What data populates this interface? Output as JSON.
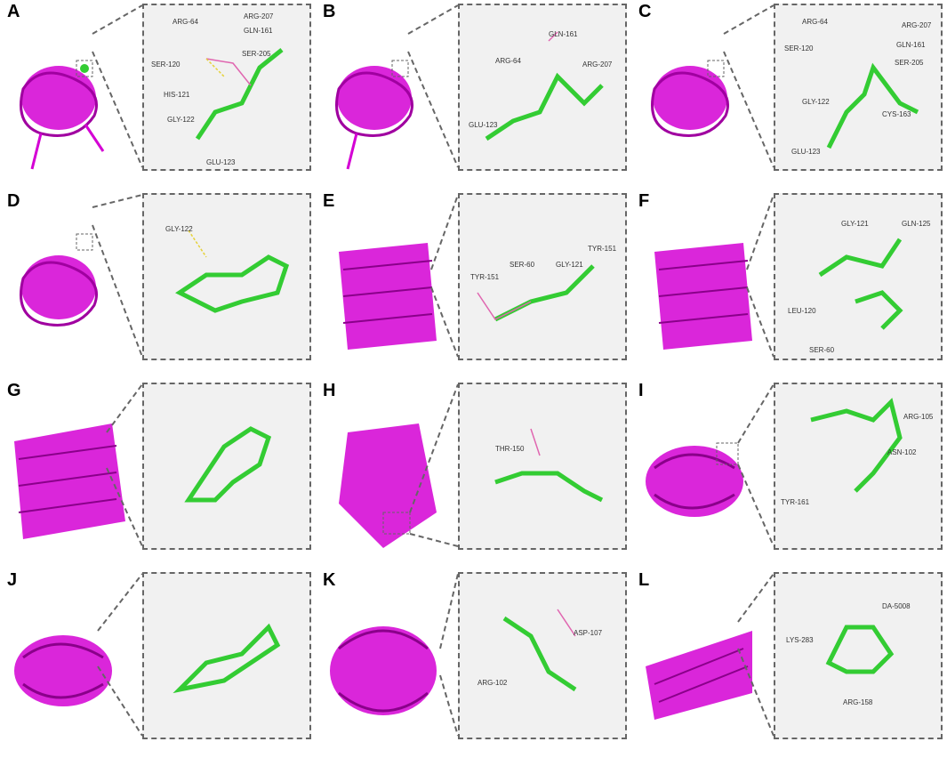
{
  "colors": {
    "protein": "#d400d4",
    "ligand": "#33cc33",
    "hbond": "#e6d23a",
    "residue": "#e066b0",
    "frame": "#666666"
  },
  "panels": [
    {
      "letter": "A",
      "residues": [
        "ARG-64",
        "ARG-207",
        "GLN-161",
        "SER-205",
        "SER-120",
        "HIS-121",
        "GLY-122",
        "GLU-123"
      ]
    },
    {
      "letter": "B",
      "residues": [
        "GLN-161",
        "ARG-64",
        "ARG-207",
        "GLU-123"
      ]
    },
    {
      "letter": "C",
      "residues": [
        "ARG-64",
        "ARG-207",
        "SER-120",
        "GLN-161",
        "SER-205",
        "GLY-122",
        "CYS-163",
        "GLU-123"
      ]
    },
    {
      "letter": "D",
      "residues": [
        "GLY-122"
      ]
    },
    {
      "letter": "E",
      "residues": [
        "TYR-151",
        "SER-60",
        "GLY-121",
        "TYR-151"
      ]
    },
    {
      "letter": "F",
      "residues": [
        "GLY-121",
        "GLN-125",
        "LEU-120",
        "SER-60"
      ]
    },
    {
      "letter": "G",
      "residues": []
    },
    {
      "letter": "H",
      "residues": [
        "THR-150"
      ]
    },
    {
      "letter": "I",
      "residues": [
        "ARG-105",
        "ASN-102",
        "TYR-161"
      ]
    },
    {
      "letter": "J",
      "residues": []
    },
    {
      "letter": "K",
      "residues": [
        "ASP-107",
        "ARG-102"
      ]
    },
    {
      "letter": "L",
      "residues": [
        "DA-5008",
        "LYS-283",
        "ARG-158"
      ]
    }
  ]
}
